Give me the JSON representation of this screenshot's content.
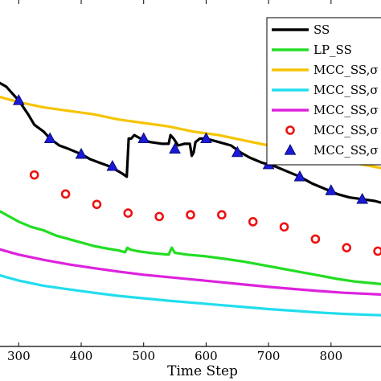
{
  "chart_data": {
    "type": "line",
    "xlabel": "Time Step",
    "xlim": [
      270,
      880
    ],
    "ylim": [
      0,
      1
    ],
    "x_ticks": [
      300,
      400,
      500,
      600,
      700,
      800
    ],
    "grid": false,
    "legend_placement": "top-right",
    "series": [
      {
        "name": "SS",
        "color": "#000000",
        "style": "line",
        "points": [
          [
            270,
            0.76
          ],
          [
            280,
            0.75
          ],
          [
            290,
            0.73
          ],
          [
            300,
            0.71
          ],
          [
            315,
            0.67
          ],
          [
            325,
            0.64
          ],
          [
            340,
            0.62
          ],
          [
            350,
            0.6
          ],
          [
            365,
            0.58
          ],
          [
            380,
            0.57
          ],
          [
            400,
            0.555
          ],
          [
            415,
            0.54
          ],
          [
            430,
            0.53
          ],
          [
            445,
            0.52
          ],
          [
            455,
            0.51
          ],
          [
            465,
            0.5
          ],
          [
            473,
            0.49
          ],
          [
            476,
            0.6
          ],
          [
            480,
            0.6
          ],
          [
            485,
            0.61
          ],
          [
            495,
            0.6
          ],
          [
            510,
            0.59
          ],
          [
            530,
            0.585
          ],
          [
            540,
            0.585
          ],
          [
            543,
            0.61
          ],
          [
            548,
            0.6
          ],
          [
            555,
            0.58
          ],
          [
            565,
            0.585
          ],
          [
            574,
            0.585
          ],
          [
            577,
            0.55
          ],
          [
            580,
            0.56
          ],
          [
            583,
            0.59
          ],
          [
            590,
            0.6
          ],
          [
            600,
            0.6
          ],
          [
            620,
            0.59
          ],
          [
            640,
            0.58
          ],
          [
            655,
            0.56
          ],
          [
            670,
            0.545
          ],
          [
            690,
            0.53
          ],
          [
            710,
            0.52
          ],
          [
            730,
            0.505
          ],
          [
            750,
            0.49
          ],
          [
            770,
            0.47
          ],
          [
            790,
            0.455
          ],
          [
            810,
            0.44
          ],
          [
            830,
            0.43
          ],
          [
            850,
            0.425
          ],
          [
            870,
            0.42
          ],
          [
            880,
            0.415
          ]
        ]
      },
      {
        "name": "LP_SS",
        "color": "#22dd22",
        "style": "line",
        "points": [
          [
            270,
            0.39
          ],
          [
            290,
            0.37
          ],
          [
            300,
            0.36
          ],
          [
            320,
            0.345
          ],
          [
            340,
            0.335
          ],
          [
            360,
            0.32
          ],
          [
            380,
            0.31
          ],
          [
            400,
            0.3
          ],
          [
            420,
            0.29
          ],
          [
            440,
            0.283
          ],
          [
            460,
            0.277
          ],
          [
            470,
            0.272
          ],
          [
            474,
            0.285
          ],
          [
            478,
            0.28
          ],
          [
            490,
            0.275
          ],
          [
            510,
            0.27
          ],
          [
            540,
            0.265
          ],
          [
            545,
            0.285
          ],
          [
            550,
            0.27
          ],
          [
            570,
            0.265
          ],
          [
            600,
            0.26
          ],
          [
            630,
            0.253
          ],
          [
            660,
            0.245
          ],
          [
            690,
            0.235
          ],
          [
            720,
            0.225
          ],
          [
            750,
            0.215
          ],
          [
            780,
            0.205
          ],
          [
            810,
            0.195
          ],
          [
            840,
            0.187
          ],
          [
            880,
            0.18
          ]
        ]
      },
      {
        "name": "MCC_SS,σ",
        "color": "#f5c400",
        "style": "line",
        "points": [
          [
            270,
            0.72
          ],
          [
            300,
            0.705
          ],
          [
            340,
            0.69
          ],
          [
            380,
            0.68
          ],
          [
            420,
            0.67
          ],
          [
            460,
            0.655
          ],
          [
            500,
            0.645
          ],
          [
            540,
            0.635
          ],
          [
            580,
            0.62
          ],
          [
            620,
            0.61
          ],
          [
            660,
            0.595
          ],
          [
            700,
            0.58
          ],
          [
            740,
            0.565
          ],
          [
            780,
            0.55
          ],
          [
            820,
            0.535
          ],
          [
            850,
            0.525
          ],
          [
            880,
            0.515
          ]
        ]
      },
      {
        "name": "MCC_SS,σ",
        "color": "#22ddee",
        "style": "line",
        "points": [
          [
            270,
            0.205
          ],
          [
            300,
            0.19
          ],
          [
            340,
            0.175
          ],
          [
            380,
            0.165
          ],
          [
            420,
            0.155
          ],
          [
            460,
            0.146
          ],
          [
            500,
            0.139
          ],
          [
            540,
            0.132
          ],
          [
            580,
            0.126
          ],
          [
            620,
            0.12
          ],
          [
            660,
            0.114
          ],
          [
            700,
            0.108
          ],
          [
            740,
            0.103
          ],
          [
            780,
            0.098
          ],
          [
            820,
            0.094
          ],
          [
            880,
            0.09
          ]
        ]
      },
      {
        "name": "MCC_SS,σ",
        "color": "#dd22dd",
        "style": "line",
        "points": [
          [
            270,
            0.28
          ],
          [
            300,
            0.265
          ],
          [
            340,
            0.25
          ],
          [
            380,
            0.237
          ],
          [
            420,
            0.226
          ],
          [
            460,
            0.216
          ],
          [
            500,
            0.207
          ],
          [
            540,
            0.2
          ],
          [
            580,
            0.193
          ],
          [
            620,
            0.186
          ],
          [
            660,
            0.179
          ],
          [
            700,
            0.172
          ],
          [
            740,
            0.166
          ],
          [
            780,
            0.16
          ],
          [
            820,
            0.155
          ],
          [
            880,
            0.15
          ]
        ]
      },
      {
        "name": "MCC_SS,σ",
        "color": "#ee1111",
        "style": "circles",
        "points": [
          [
            325,
            0.495
          ],
          [
            375,
            0.44
          ],
          [
            425,
            0.41
          ],
          [
            475,
            0.385
          ],
          [
            525,
            0.375
          ],
          [
            575,
            0.38
          ],
          [
            625,
            0.38
          ],
          [
            675,
            0.36
          ],
          [
            725,
            0.345
          ],
          [
            775,
            0.31
          ],
          [
            825,
            0.285
          ],
          [
            875,
            0.275
          ]
        ]
      },
      {
        "name": "MCC_SS,σ",
        "color": "#1a1ad6",
        "style": "triangles",
        "points": [
          [
            300,
            0.71
          ],
          [
            350,
            0.6
          ],
          [
            400,
            0.555
          ],
          [
            450,
            0.52
          ],
          [
            500,
            0.6
          ],
          [
            550,
            0.57
          ],
          [
            600,
            0.6
          ],
          [
            650,
            0.56
          ],
          [
            700,
            0.525
          ],
          [
            750,
            0.49
          ],
          [
            800,
            0.45
          ],
          [
            850,
            0.425
          ]
        ]
      }
    ]
  }
}
